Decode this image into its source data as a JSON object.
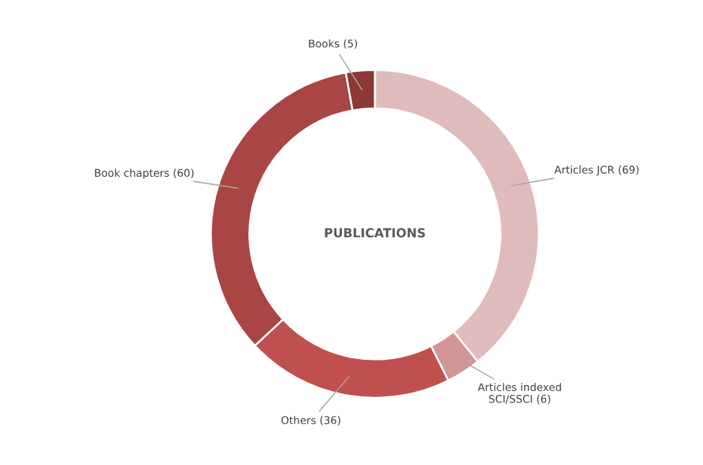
{
  "chart_data": {
    "type": "donut",
    "title": "PUBLICATIONS",
    "categories": [
      "Articles JCR (69)",
      "Articles indexed\nSCI/SSCI (6)",
      "Others (36)",
      "Book chapters (60)",
      "Books (5)"
    ],
    "values": [
      69,
      6,
      36,
      60,
      5
    ],
    "colors": [
      "#e0bbbc",
      "#d39697",
      "#c0504d",
      "#a94543",
      "#8c3836"
    ]
  }
}
